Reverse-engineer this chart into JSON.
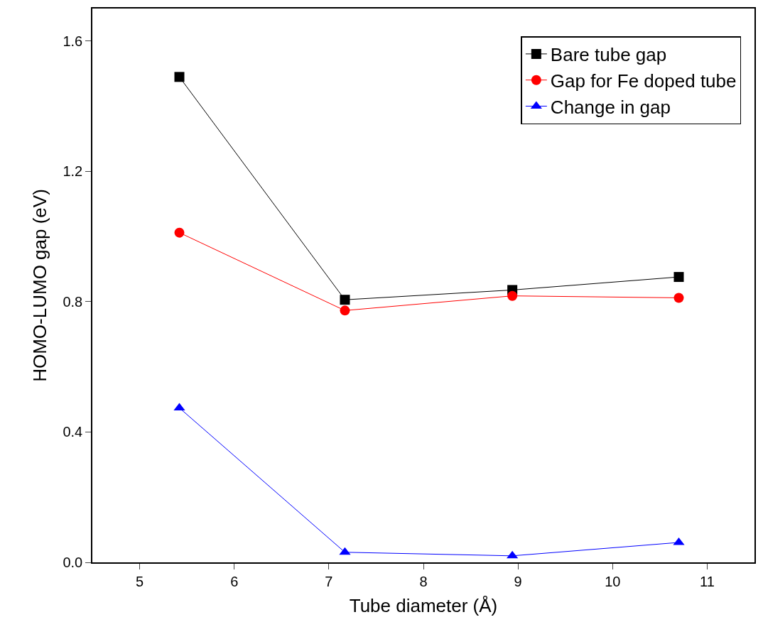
{
  "chart_data": {
    "type": "line",
    "xlabel": "Tube diameter (Å)",
    "ylabel": "HOMO-LUMO gap (eV)",
    "x": [
      5.42,
      7.17,
      8.94,
      10.7
    ],
    "series": [
      {
        "name": "Bare tube gap",
        "color": "#000000",
        "marker": "square",
        "values": [
          1.49,
          0.806,
          0.836,
          0.876
        ]
      },
      {
        "name": "Gap for Fe doped tube",
        "color": "#ff0000",
        "marker": "circle",
        "values": [
          1.012,
          0.773,
          0.818,
          0.812
        ]
      },
      {
        "name": "Change in gap",
        "color": "#0000ff",
        "marker": "triangle",
        "values": [
          0.474,
          0.031,
          0.02,
          0.061
        ]
      }
    ],
    "xlim": [
      4.5,
      11.5
    ],
    "xticks": [
      5,
      6,
      7,
      8,
      9,
      10,
      11
    ],
    "ylim": [
      0,
      1.7
    ],
    "yticks": [
      {
        "value": 0,
        "label": "0.0"
      },
      0.4,
      0.8,
      1.2,
      1.6
    ],
    "legend": "top right",
    "line_style": "solid"
  }
}
